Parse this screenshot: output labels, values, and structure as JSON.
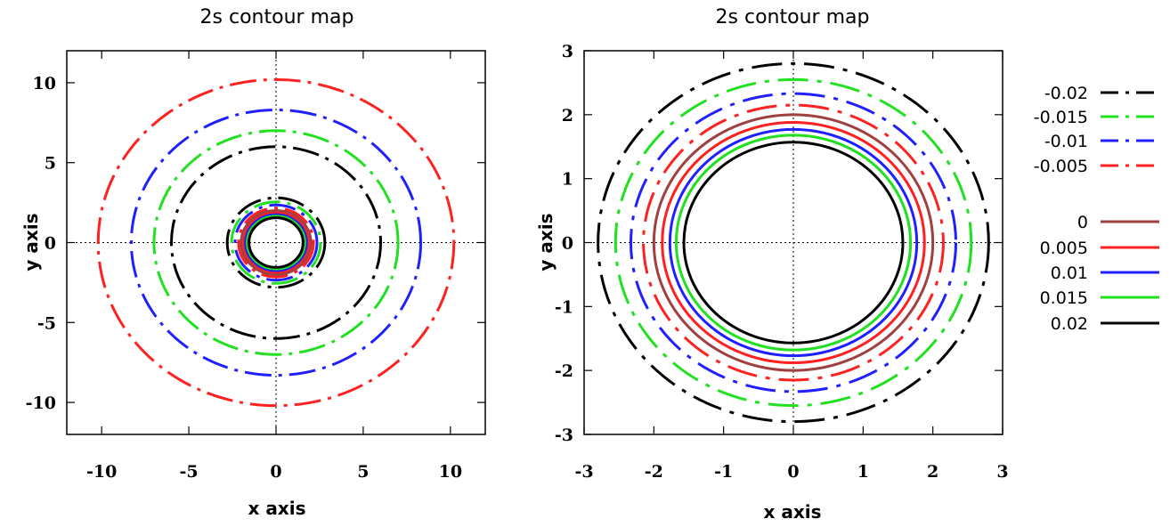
{
  "chart_data": [
    {
      "type": "line",
      "title": "2s contour map",
      "xlabel": "x axis",
      "ylabel": "y axis",
      "xlim": [
        -12,
        12
      ],
      "ylim": [
        -12,
        12
      ],
      "xticks": [
        -10,
        -5,
        0,
        5,
        10
      ],
      "yticks": [
        -10,
        -5,
        0,
        5,
        10
      ],
      "zero_lines": true,
      "series": [
        {
          "level": "-0.005",
          "radius": 10.2,
          "color": "#ff2020",
          "style": "dash-dot"
        },
        {
          "level": "-0.01",
          "radius": 8.3,
          "color": "#2020ff",
          "style": "dash-dot"
        },
        {
          "level": "-0.015",
          "radius": 7.0,
          "color": "#20e020",
          "style": "dash-dot"
        },
        {
          "level": "-0.02",
          "radius": 6.0,
          "color": "#000000",
          "style": "dash-dot"
        },
        {
          "level": "-0.02",
          "radius": 2.8,
          "color": "#000000",
          "style": "dash-dot"
        },
        {
          "level": "-0.015",
          "radius": 2.55,
          "color": "#20e020",
          "style": "dash-dot"
        },
        {
          "level": "-0.01",
          "radius": 2.35,
          "color": "#2020ff",
          "style": "dash-dot"
        },
        {
          "level": "-0.005",
          "radius": 2.15,
          "color": "#ff2020",
          "style": "dash-dot"
        },
        {
          "level": "0",
          "radius": 2.0,
          "color": "#a04040",
          "style": "solid"
        },
        {
          "level": "0.005",
          "radius": 1.85,
          "color": "#ff2020",
          "style": "solid"
        },
        {
          "level": "0.01",
          "radius": 1.75,
          "color": "#2020ff",
          "style": "solid"
        },
        {
          "level": "0.015",
          "radius": 1.65,
          "color": "#20e020",
          "style": "solid"
        },
        {
          "level": "0.02",
          "radius": 1.55,
          "color": "#000000",
          "style": "solid"
        }
      ]
    },
    {
      "type": "line",
      "title": "2s contour map",
      "xlabel": "x axis",
      "ylabel": "y axis",
      "xlim": [
        -3,
        3
      ],
      "ylim": [
        -3,
        3
      ],
      "xticks": [
        -3,
        -2,
        -1,
        0,
        1,
        2,
        3
      ],
      "yticks": [
        -3,
        -2,
        -1,
        0,
        1,
        2,
        3
      ],
      "zero_lines": true,
      "legend": "right",
      "series": [
        {
          "level": "-0.02",
          "radius": 2.8,
          "color": "#000000",
          "style": "dash-dot"
        },
        {
          "level": "-0.015",
          "radius": 2.55,
          "color": "#20e020",
          "style": "dash-dot"
        },
        {
          "level": "-0.01",
          "radius": 2.33,
          "color": "#2020ff",
          "style": "dash-dot"
        },
        {
          "level": "-0.005",
          "radius": 2.15,
          "color": "#ff2020",
          "style": "dash-dot"
        },
        {
          "level": "0",
          "radius": 2.0,
          "color": "#a04040",
          "style": "solid"
        },
        {
          "level": "0.005",
          "radius": 1.88,
          "color": "#ff2020",
          "style": "solid"
        },
        {
          "level": "0.01",
          "radius": 1.77,
          "color": "#2020ff",
          "style": "solid"
        },
        {
          "level": "0.015",
          "radius": 1.68,
          "color": "#20e020",
          "style": "solid"
        },
        {
          "level": "0.02",
          "radius": 1.57,
          "color": "#000000",
          "style": "solid"
        }
      ]
    }
  ],
  "legend": {
    "entries": [
      {
        "label": "-0.02",
        "color": "#000000",
        "style": "dash-dot"
      },
      {
        "label": "-0.015",
        "color": "#20e020",
        "style": "dash-dot"
      },
      {
        "label": "-0.01",
        "color": "#2020ff",
        "style": "dash-dot"
      },
      {
        "label": "-0.005",
        "color": "#ff2020",
        "style": "dash-dot"
      },
      {
        "label": "0",
        "color": "#a04040",
        "style": "solid"
      },
      {
        "label": "0.005",
        "color": "#ff2020",
        "style": "solid"
      },
      {
        "label": "0.01",
        "color": "#2020ff",
        "style": "solid"
      },
      {
        "label": "0.015",
        "color": "#20e020",
        "style": "solid"
      },
      {
        "label": "0.02",
        "color": "#000000",
        "style": "solid"
      }
    ]
  }
}
